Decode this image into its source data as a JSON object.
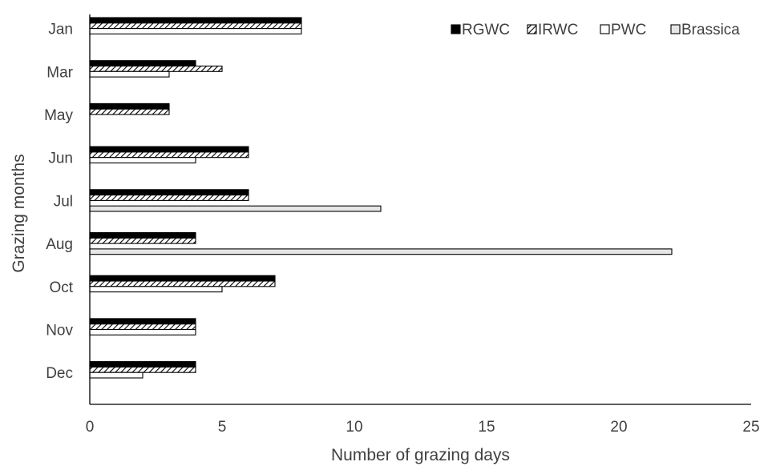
{
  "chart_data": {
    "type": "bar",
    "orientation": "horizontal",
    "title": "",
    "xlabel": "Number of grazing days",
    "ylabel": "Grazing months",
    "xlim": [
      0,
      25
    ],
    "xticks": [
      0,
      5,
      10,
      15,
      20,
      25
    ],
    "grid": false,
    "legend_position": "top-right",
    "categories": [
      "Jan",
      "Mar",
      "May",
      "Jun",
      "Jul",
      "Aug",
      "Oct",
      "Nov",
      "Dec"
    ],
    "series": [
      {
        "name": "RGWC",
        "pattern": "solid-black",
        "values": [
          8,
          4,
          3,
          6,
          6,
          4,
          7,
          4,
          4
        ]
      },
      {
        "name": "IRWC",
        "pattern": "diagonal-hatch",
        "values": [
          8,
          5,
          3,
          6,
          6,
          4,
          7,
          4,
          4
        ]
      },
      {
        "name": "PWC",
        "pattern": "white",
        "values": [
          8,
          3,
          0,
          4,
          0,
          0,
          5,
          4,
          2
        ]
      },
      {
        "name": "Brassica",
        "pattern": "light-gray",
        "values": [
          0,
          0,
          0,
          0,
          11,
          22,
          0,
          0,
          0
        ]
      }
    ],
    "colors": {
      "black": "#000000",
      "gray": "#e6e6e6",
      "text": "#404040",
      "axis": "#000000"
    }
  }
}
